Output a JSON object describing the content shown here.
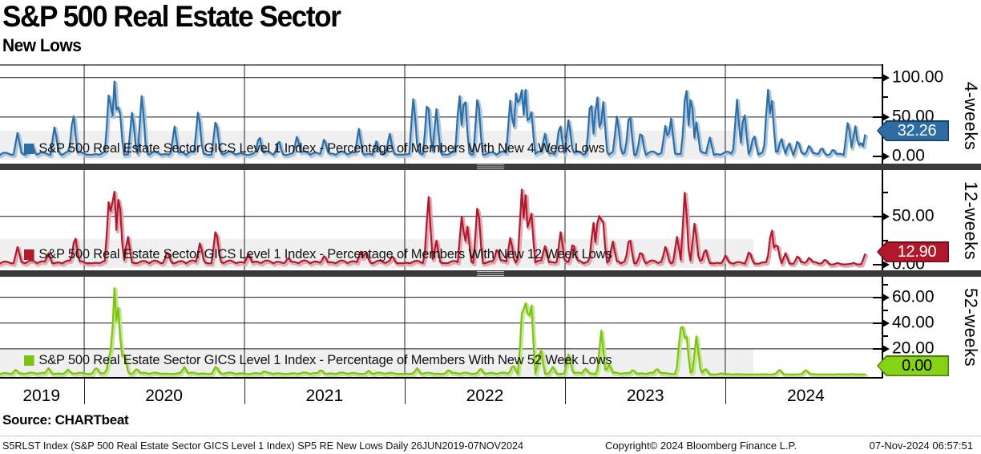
{
  "header": {
    "title": "S&P 500 Real Estate Sector",
    "subtitle": "New Lows"
  },
  "source_label": "Source: CHARTbeat",
  "footer": {
    "left": "S5RLST Index (S&P 500 Real Estate Sector GICS Level 1 Index) SP5 RE New Lows  Daily 26JUN2019-07NOV2024",
    "center": "Copyright© 2024 Bloomberg Finance L.P.",
    "right": "07-Nov-2024 06:57:51"
  },
  "x_axis": {
    "range": "26JUN2019-07NOV2024",
    "years": [
      {
        "label": "2019",
        "center_pct": 4.7
      },
      {
        "label": "2020",
        "center_pct": 18.6
      },
      {
        "label": "2021",
        "center_pct": 36.8
      },
      {
        "label": "2022",
        "center_pct": 55.0
      },
      {
        "label": "2023",
        "center_pct": 73.2
      },
      {
        "label": "2024",
        "center_pct": 91.4
      }
    ],
    "boundaries_pct": [
      9.55,
      27.73,
      45.91,
      64.09,
      82.27
    ]
  },
  "chart_data": [
    {
      "type": "line",
      "name": "4-week new lows",
      "side_label": "4-weeks",
      "legend": "S&P 500 Real Estate Sector GICS Level 1 Index - Percentage of Members With New 4 Week Lows",
      "line_color": "#2e6da4",
      "halo_color": "#a8c3dc",
      "badge_color": "#2e6da4",
      "badge_border": "#173f66",
      "badge_text_color": "#ffffff",
      "last_value": 32.26,
      "last_value_label": "32.26",
      "ylim": [
        0,
        117
      ],
      "ticks": [
        {
          "v": 100,
          "label": "100.00",
          "grid": true
        },
        {
          "v": 50,
          "label": "50.00",
          "grid": true
        },
        {
          "v": 0,
          "label": "0.00",
          "grid": false
        }
      ],
      "minor_ticks": [
        75,
        25
      ],
      "noise_floor": [
        [
          0,
          6.5
        ],
        [
          88,
          4.5
        ]
      ],
      "end_pct": 98.2,
      "spikes": [
        [
          2.0,
          31
        ],
        [
          3.6,
          18
        ],
        [
          6.2,
          40
        ],
        [
          8.3,
          58
        ],
        [
          12.4,
          92
        ],
        [
          13.0,
          99
        ],
        [
          13.5,
          74
        ],
        [
          15.0,
          60
        ],
        [
          16.1,
          83
        ],
        [
          19.8,
          38
        ],
        [
          22.5,
          63
        ],
        [
          24.5,
          51
        ],
        [
          29.4,
          28
        ],
        [
          31.6,
          22
        ],
        [
          33.7,
          27
        ],
        [
          36.8,
          24
        ],
        [
          40.7,
          35
        ],
        [
          42.7,
          20
        ],
        [
          44.2,
          30
        ],
        [
          46.9,
          79
        ],
        [
          48.5,
          79
        ],
        [
          49.5,
          60
        ],
        [
          52.1,
          83
        ],
        [
          52.7,
          86
        ],
        [
          54.2,
          85
        ],
        [
          57.9,
          77
        ],
        [
          58.6,
          95
        ],
        [
          59.1,
          100
        ],
        [
          59.6,
          88
        ],
        [
          60.2,
          67
        ],
        [
          61.8,
          30
        ],
        [
          63.5,
          45
        ],
        [
          64.5,
          50
        ],
        [
          67.0,
          80
        ],
        [
          67.7,
          85
        ],
        [
          68.4,
          72
        ],
        [
          70.0,
          55
        ],
        [
          71.4,
          61
        ],
        [
          72.7,
          35
        ],
        [
          75.5,
          42
        ],
        [
          76.1,
          50
        ],
        [
          77.8,
          99
        ],
        [
          78.4,
          85
        ],
        [
          79.0,
          45
        ],
        [
          80.5,
          25
        ],
        [
          83.6,
          72
        ],
        [
          84.4,
          62
        ],
        [
          85.5,
          30
        ],
        [
          87.1,
          88
        ],
        [
          87.5,
          80
        ],
        [
          88.6,
          25
        ],
        [
          89.5,
          18
        ],
        [
          90.5,
          22
        ],
        [
          91.8,
          15
        ],
        [
          93.2,
          12
        ],
        [
          94.5,
          10
        ],
        [
          96.2,
          48
        ],
        [
          97.0,
          40
        ],
        [
          97.6,
          20
        ],
        [
          98.2,
          32.26
        ]
      ]
    },
    {
      "type": "line",
      "name": "12-week new lows",
      "side_label": "12-weeks",
      "legend": "S&P 500 Real Estate Sector GICS Level 1 Index - Percentage of Members With New 12 Week Lows",
      "line_color": "#b2182b",
      "halo_color": "#dba3ac",
      "badge_color": "#b2182b",
      "badge_border": "#6f0c1a",
      "badge_text_color": "#ffffff",
      "last_value": 12.9,
      "last_value_label": "12.90",
      "ylim": [
        0,
        98
      ],
      "ticks": [
        {
          "v": 50,
          "label": "50.00",
          "grid": true
        },
        {
          "v": 0,
          "label": "0.00",
          "grid": false
        }
      ],
      "minor_ticks": [
        75,
        25
      ],
      "noise_floor": [
        [
          0,
          4.5
        ],
        [
          82,
          3
        ],
        [
          94,
          0.8
        ]
      ],
      "end_pct": 98.2,
      "spikes": [
        [
          2.0,
          19
        ],
        [
          5.5,
          12
        ],
        [
          8.5,
          32
        ],
        [
          12.4,
          77
        ],
        [
          12.9,
          90
        ],
        [
          13.5,
          80
        ],
        [
          14.5,
          30
        ],
        [
          19.0,
          15
        ],
        [
          22.7,
          24
        ],
        [
          24.5,
          40
        ],
        [
          28.2,
          12
        ],
        [
          32.7,
          8
        ],
        [
          36.8,
          10
        ],
        [
          40.9,
          14
        ],
        [
          41.5,
          15
        ],
        [
          44.5,
          10
        ],
        [
          48.6,
          73
        ],
        [
          49.5,
          25
        ],
        [
          52.4,
          54
        ],
        [
          53.0,
          41
        ],
        [
          54.2,
          69
        ],
        [
          56.4,
          18
        ],
        [
          57.9,
          30
        ],
        [
          59.2,
          81
        ],
        [
          59.6,
          75
        ],
        [
          60.2,
          63
        ],
        [
          61.8,
          20
        ],
        [
          63.6,
          35
        ],
        [
          65.0,
          25
        ],
        [
          67.3,
          45
        ],
        [
          67.9,
          60
        ],
        [
          68.3,
          58
        ],
        [
          69.5,
          25
        ],
        [
          71.4,
          31
        ],
        [
          72.7,
          15
        ],
        [
          75.5,
          20
        ],
        [
          76.8,
          30
        ],
        [
          77.7,
          81
        ],
        [
          78.8,
          46
        ],
        [
          80.0,
          18
        ],
        [
          82.3,
          10
        ],
        [
          85.0,
          15
        ],
        [
          87.5,
          40
        ],
        [
          88.1,
          25
        ],
        [
          89.1,
          12
        ],
        [
          90.5,
          10
        ],
        [
          91.8,
          8
        ],
        [
          93.6,
          6
        ],
        [
          95.0,
          2
        ],
        [
          96.8,
          2
        ],
        [
          98.2,
          12.9
        ]
      ]
    },
    {
      "type": "line",
      "name": "52-week new lows",
      "side_label": "52-weeks",
      "legend": "S&P 500 Real Estate Sector GICS Level 1 Index - Percentage of Members With New 52 Week Lows",
      "line_color": "#7ac412",
      "halo_color": "#c3e287",
      "badge_color": "#86d214",
      "badge_border": "#4c7d0a",
      "badge_text_color": "#000000",
      "last_value": 0.0,
      "last_value_label": "0.00",
      "ylim": [
        0,
        76
      ],
      "ticks": [
        {
          "v": 60,
          "label": "60.00",
          "grid": true
        },
        {
          "v": 40,
          "label": "40.00",
          "grid": true
        },
        {
          "v": 20,
          "label": "20.00",
          "grid": true
        }
      ],
      "minor_ticks": [
        70,
        50,
        30,
        10
      ],
      "noise_floor": [
        [
          0,
          1.6
        ],
        [
          80,
          0.35
        ]
      ],
      "end_pct": 98.2,
      "spikes": [
        [
          1.8,
          4
        ],
        [
          5.5,
          5
        ],
        [
          7.7,
          4
        ],
        [
          10.9,
          6
        ],
        [
          12.5,
          20
        ],
        [
          13.0,
          70
        ],
        [
          13.4,
          54
        ],
        [
          13.6,
          30
        ],
        [
          14.1,
          16
        ],
        [
          15.5,
          5
        ],
        [
          20.9,
          6
        ],
        [
          24.5,
          7
        ],
        [
          30.0,
          3
        ],
        [
          36.4,
          4
        ],
        [
          41.8,
          3
        ],
        [
          47.3,
          5
        ],
        [
          50.9,
          4
        ],
        [
          54.5,
          5
        ],
        [
          58.2,
          8
        ],
        [
          59.3,
          63
        ],
        [
          59.7,
          66
        ],
        [
          60.2,
          64
        ],
        [
          61.3,
          22
        ],
        [
          62.7,
          6
        ],
        [
          64.5,
          17
        ],
        [
          66.4,
          5
        ],
        [
          68.2,
          34
        ],
        [
          69.1,
          8
        ],
        [
          71.8,
          4
        ],
        [
          74.5,
          5
        ],
        [
          77.2,
          38
        ],
        [
          77.5,
          42
        ],
        [
          77.8,
          35
        ],
        [
          79.0,
          31
        ],
        [
          80.0,
          5
        ],
        [
          81.8,
          1
        ],
        [
          88.4,
          4
        ],
        [
          91.4,
          4
        ],
        [
          98.2,
          0
        ]
      ]
    }
  ]
}
